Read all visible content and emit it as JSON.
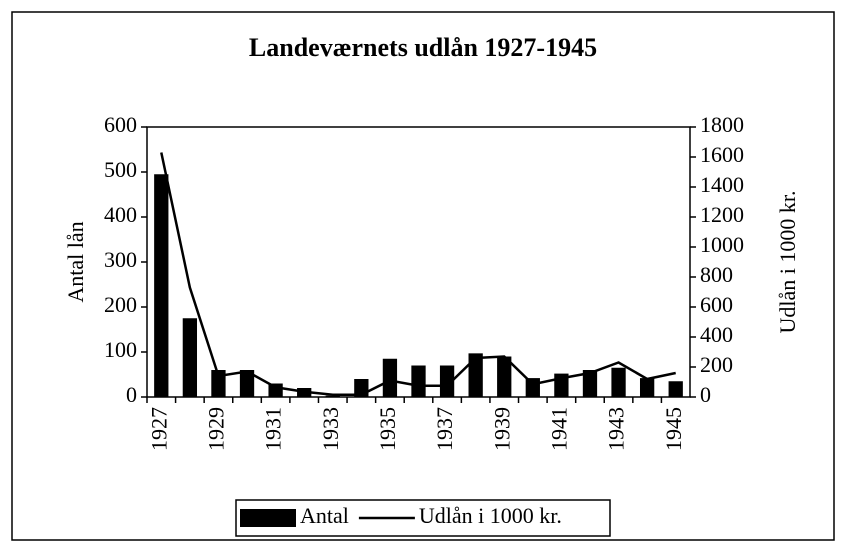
{
  "chart_data": {
    "type": "bar_line",
    "title": "Landeværnets udlån 1927-1945",
    "ylabel": "Antal lån",
    "y2label": "Udlån i 1000 kr.",
    "categories": [
      "1927",
      null,
      "1929",
      null,
      "1931",
      null,
      "1933",
      null,
      "1935",
      null,
      "1937",
      null,
      "1939",
      null,
      "1941",
      null,
      "1943",
      null,
      "1945"
    ],
    "series": [
      {
        "name": "Antal",
        "type": "bar",
        "color": "#000000",
        "values": [
          495,
          175,
          60,
          60,
          30,
          20,
          3,
          40,
          85,
          70,
          70,
          97,
          90,
          42,
          52,
          60,
          65,
          42,
          35
        ]
      },
      {
        "name": "Udlån i 1000 kr.",
        "type": "line",
        "axis": "y2",
        "color": "#000000",
        "values": [
          1630,
          730,
          140,
          170,
          65,
          35,
          15,
          15,
          110,
          75,
          75,
          260,
          270,
          85,
          125,
          160,
          230,
          120,
          160
        ]
      }
    ],
    "ylim": [
      0,
      600
    ],
    "yticks": [
      0,
      100,
      200,
      300,
      400,
      500,
      600
    ],
    "y2lim": [
      0,
      1800
    ],
    "y2ticks": [
      0,
      200,
      400,
      600,
      800,
      1000,
      1200,
      1400,
      1600,
      1800
    ],
    "legend": "bottom"
  }
}
